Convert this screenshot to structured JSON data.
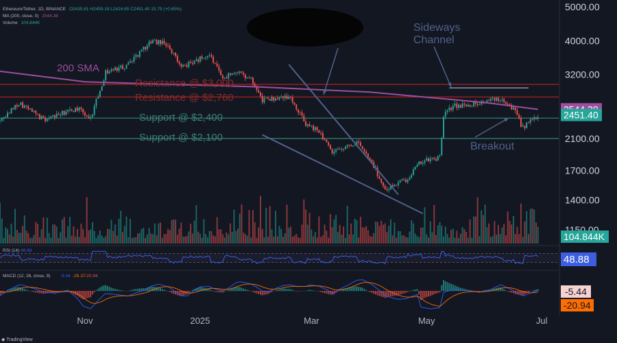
{
  "header": {
    "symbol": "Ethereum/Tether, 1D, BINANCE",
    "ohlc": "O2435.61 H2459.19 L2424.65 C2451.40 15.79 (+0.65%)",
    "ma_label": "MA (200, close, 0)",
    "ma_value": "2544.38",
    "volume_label": "Volume",
    "volume_value": "104.844K"
  },
  "footer": {
    "brand": "TradingView"
  },
  "colors": {
    "background": "#131722",
    "up": "#26a69a",
    "down": "#ef5350",
    "sma": "#9c4f9f",
    "rsi": "#3c5ee0",
    "annotation": "#50638a",
    "resistance": "#8b1f1f",
    "support": "#2b6b60",
    "macd": "#2962ff",
    "signal": "#ff6d00"
  },
  "chart_data": [
    {
      "type": "candlestick",
      "title": "",
      "y_ticks": [
        "5000.00",
        "4000.00",
        "3200.00",
        "2100.00",
        "1700.00",
        "1400.00",
        "1150.00"
      ],
      "y_scale": "log",
      "ylim": [
        1050,
        5000
      ],
      "x_ticks": [
        "Nov",
        "2025",
        "Mar",
        "May",
        "Jul"
      ],
      "x_range": [
        "2024-09-17",
        "2025-07-10"
      ],
      "grid": false,
      "price_path": [
        [
          "2024-09-17",
          2350
        ],
        [
          "2024-09-27",
          2660
        ],
        [
          "2024-10-10",
          2380
        ],
        [
          "2024-10-28",
          2560
        ],
        [
          "2024-11-04",
          2400
        ],
        [
          "2024-11-12",
          3250
        ],
        [
          "2024-11-23",
          3400
        ],
        [
          "2024-12-06",
          3990
        ],
        [
          "2024-12-15",
          3900
        ],
        [
          "2024-12-22",
          3350
        ],
        [
          "2025-01-06",
          3650
        ],
        [
          "2025-01-13",
          3100
        ],
        [
          "2025-01-20",
          3300
        ],
        [
          "2025-01-28",
          3100
        ],
        [
          "2025-02-03",
          2700
        ],
        [
          "2025-02-18",
          2750
        ],
        [
          "2025-02-26",
          2300
        ],
        [
          "2025-03-05",
          2200
        ],
        [
          "2025-03-12",
          1900
        ],
        [
          "2025-03-25",
          2050
        ],
        [
          "2025-04-02",
          1800
        ],
        [
          "2025-04-09",
          1500
        ],
        [
          "2025-04-20",
          1600
        ],
        [
          "2025-04-28",
          1800
        ],
        [
          "2025-05-08",
          1850
        ],
        [
          "2025-05-10",
          2450
        ],
        [
          "2025-05-15",
          2600
        ],
        [
          "2025-05-28",
          2650
        ],
        [
          "2025-06-10",
          2750
        ],
        [
          "2025-06-16",
          2550
        ],
        [
          "2025-06-21",
          2250
        ],
        [
          "2025-06-29",
          2451
        ]
      ],
      "sma_200": [
        [
          "2024-09-17",
          3270
        ],
        [
          "2024-11-01",
          3050
        ],
        [
          "2024-12-15",
          3000
        ],
        [
          "2025-02-01",
          2950
        ],
        [
          "2025-04-01",
          2850
        ],
        [
          "2025-06-01",
          2660
        ],
        [
          "2025-06-29",
          2544
        ]
      ],
      "price_labels": [
        {
          "text": "2544.38",
          "value": 2544.38,
          "color": "#9c4f9f"
        },
        {
          "text": "2451.40",
          "value": 2451.4,
          "color": "#26a69a"
        }
      ],
      "horizontal_levels": [
        {
          "value": 3000,
          "label": "Resistance @ $3,000",
          "color": "#8b1f1f"
        },
        {
          "value": 2760,
          "label": "Resistance @ $2,760",
          "color": "#8b1f1f"
        },
        {
          "value": 2400,
          "label": "Support @ $2,400",
          "color": "#2b6b60"
        },
        {
          "value": 2100,
          "label": "Support @ $2,100",
          "color": "#2b6b60"
        }
      ],
      "annotations": {
        "sma_label": "200 SMA",
        "channel_label": "Sideways Channel",
        "breakout_label": "Breakout"
      },
      "channel_lines": [
        {
          "from": [
            "2025-02-17",
            3420
          ],
          "to": [
            "2025-04-16",
            1450
          ]
        },
        {
          "from": [
            "2025-02-03",
            2150
          ],
          "to": [
            "2025-04-29",
            1280
          ]
        }
      ],
      "volume": {
        "label": "104.844K"
      }
    },
    {
      "type": "line",
      "title": "RSI (14)",
      "value_label": "48.88",
      "ylim": [
        0,
        100
      ],
      "levels": [
        30,
        70
      ]
    },
    {
      "type": "macd",
      "title": "MACD (12, 26, close, 9)",
      "values": [
        "-5.44",
        "-26.37",
        "-20.94"
      ],
      "macd_label": "-5.44",
      "signal_label": "-20.94"
    }
  ]
}
